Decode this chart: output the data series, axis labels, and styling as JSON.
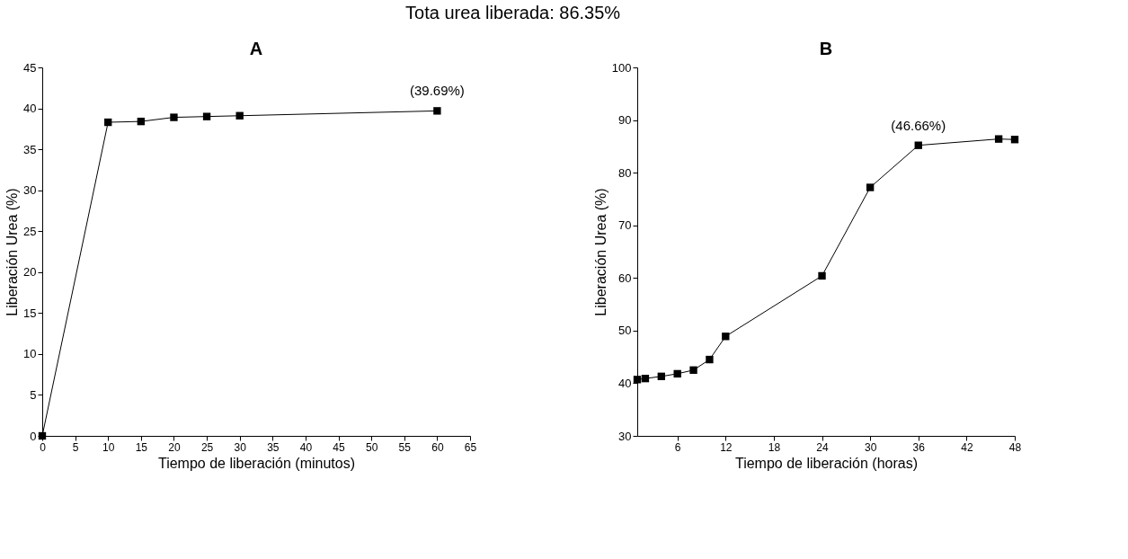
{
  "chart_data": [
    {
      "type": "other",
      "title": "Tota urea liberada: 86.35%"
    },
    {
      "type": "line",
      "title": "A",
      "xlabel": "Tiempo de liberación (minutos)",
      "ylabel": "Liberación Urea (%)",
      "x": [
        0,
        10,
        15,
        20,
        25,
        30,
        60
      ],
      "series": [
        {
          "color": "#000000",
          "values": [
            0,
            38.3,
            38.4,
            38.9,
            39.0,
            39.1,
            39.69
          ]
        }
      ],
      "xlim": [
        0,
        65
      ],
      "xticks": [
        0,
        5,
        10,
        15,
        20,
        25,
        30,
        35,
        40,
        45,
        50,
        55,
        60,
        65
      ],
      "ylim": [
        0,
        45
      ],
      "yticks": [
        0,
        5,
        10,
        15,
        20,
        25,
        30,
        35,
        40,
        45
      ],
      "annotations": [
        {
          "text": "(39.69%)",
          "x": 60,
          "y": 39.69
        }
      ],
      "marker": "square",
      "line_style": "solid",
      "grid": false
    },
    {
      "type": "line",
      "title": "B",
      "xlabel": "Tiempo de liberación (horas)",
      "ylabel": "Liberación Urea (%)",
      "x": [
        1,
        2,
        4,
        6,
        8,
        10,
        12,
        24,
        30,
        36,
        46,
        48
      ],
      "series": [
        {
          "color": "#000000",
          "values": [
            40.7,
            40.9,
            41.3,
            41.8,
            42.5,
            44.5,
            48.9,
            60.4,
            77.2,
            85.2,
            86.4,
            86.3
          ]
        }
      ],
      "xlim": [
        1,
        48
      ],
      "xticks": [
        6,
        12,
        18,
        24,
        30,
        36,
        42,
        48
      ],
      "ylim": [
        30,
        100
      ],
      "yticks": [
        30,
        40,
        50,
        60,
        70,
        80,
        90,
        100
      ],
      "annotations": [
        {
          "text": "(46.66%)",
          "x": 36,
          "y": 85.2
        }
      ],
      "marker": "square",
      "line_style": "solid",
      "grid": false
    }
  ]
}
